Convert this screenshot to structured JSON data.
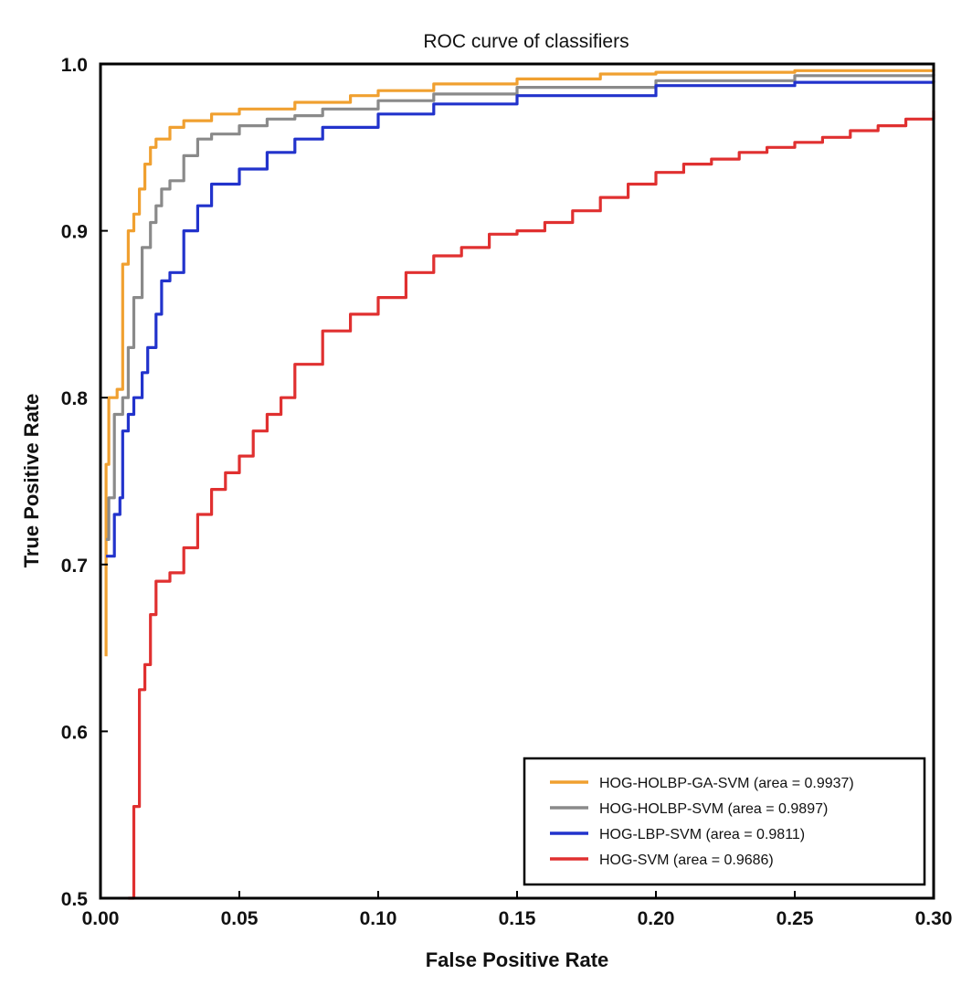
{
  "chart_data": {
    "type": "line",
    "title": "ROC curve of classifiers",
    "xlabel": "False Positive Rate",
    "ylabel": "True Positive Rate",
    "xlim": [
      0.0,
      0.3
    ],
    "ylim": [
      0.5,
      1.0
    ],
    "xticks": [
      "0.00",
      "0.05",
      "0.10",
      "0.15",
      "0.20",
      "0.25",
      "0.30"
    ],
    "yticks": [
      "0.5",
      "0.6",
      "0.7",
      "0.8",
      "0.9",
      "1.0"
    ],
    "grid": false,
    "legend_position": "bottom-right",
    "series": [
      {
        "name": "HOG-HOLBP-GA-SVM (area = 0.9937)",
        "color": "#f0a030",
        "x": [
          0.002,
          0.002,
          0.003,
          0.006,
          0.008,
          0.01,
          0.012,
          0.014,
          0.016,
          0.018,
          0.02,
          0.025,
          0.03,
          0.04,
          0.05,
          0.07,
          0.09,
          0.1,
          0.12,
          0.15,
          0.18,
          0.2,
          0.25,
          0.3
        ],
        "y": [
          0.645,
          0.76,
          0.8,
          0.805,
          0.88,
          0.9,
          0.91,
          0.925,
          0.94,
          0.95,
          0.955,
          0.962,
          0.966,
          0.97,
          0.973,
          0.977,
          0.981,
          0.984,
          0.988,
          0.991,
          0.994,
          0.995,
          0.996,
          0.997
        ]
      },
      {
        "name": "HOG-HOLBP-SVM (area = 0.9897)",
        "color": "#8a8a8a",
        "x": [
          0.002,
          0.003,
          0.005,
          0.008,
          0.01,
          0.012,
          0.015,
          0.018,
          0.02,
          0.022,
          0.025,
          0.03,
          0.035,
          0.04,
          0.05,
          0.06,
          0.07,
          0.08,
          0.1,
          0.12,
          0.15,
          0.2,
          0.25,
          0.3
        ],
        "y": [
          0.715,
          0.74,
          0.79,
          0.8,
          0.83,
          0.86,
          0.89,
          0.905,
          0.915,
          0.925,
          0.93,
          0.945,
          0.955,
          0.958,
          0.963,
          0.967,
          0.969,
          0.973,
          0.978,
          0.982,
          0.986,
          0.99,
          0.993,
          0.994
        ]
      },
      {
        "name": "HOG-LBP-SVM (area = 0.9811)",
        "color": "#2233cc",
        "x": [
          0.002,
          0.005,
          0.007,
          0.008,
          0.01,
          0.012,
          0.015,
          0.017,
          0.02,
          0.022,
          0.025,
          0.03,
          0.035,
          0.04,
          0.05,
          0.06,
          0.07,
          0.08,
          0.1,
          0.12,
          0.15,
          0.2,
          0.25,
          0.3
        ],
        "y": [
          0.705,
          0.73,
          0.74,
          0.78,
          0.79,
          0.8,
          0.815,
          0.83,
          0.85,
          0.87,
          0.875,
          0.9,
          0.915,
          0.928,
          0.937,
          0.947,
          0.955,
          0.962,
          0.97,
          0.976,
          0.981,
          0.987,
          0.989,
          0.99
        ]
      },
      {
        "name": "HOG-SVM (area = 0.9686)",
        "color": "#e03030",
        "x": [
          0.01,
          0.012,
          0.014,
          0.016,
          0.018,
          0.02,
          0.025,
          0.03,
          0.035,
          0.04,
          0.045,
          0.05,
          0.055,
          0.06,
          0.065,
          0.07,
          0.08,
          0.09,
          0.1,
          0.11,
          0.12,
          0.13,
          0.14,
          0.15,
          0.16,
          0.17,
          0.18,
          0.19,
          0.2,
          0.21,
          0.22,
          0.23,
          0.24,
          0.25,
          0.26,
          0.27,
          0.28,
          0.29,
          0.3
        ],
        "y": [
          0.5,
          0.555,
          0.625,
          0.64,
          0.67,
          0.69,
          0.695,
          0.71,
          0.73,
          0.745,
          0.755,
          0.765,
          0.78,
          0.79,
          0.8,
          0.82,
          0.84,
          0.85,
          0.86,
          0.875,
          0.885,
          0.89,
          0.898,
          0.9,
          0.905,
          0.912,
          0.92,
          0.928,
          0.935,
          0.94,
          0.943,
          0.947,
          0.95,
          0.953,
          0.956,
          0.96,
          0.963,
          0.967,
          0.972
        ]
      }
    ]
  }
}
